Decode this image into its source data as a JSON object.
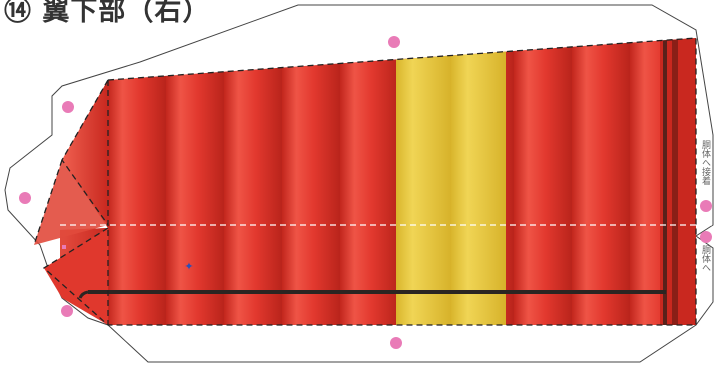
{
  "title": "⑭ 翼下部（右）",
  "side_labels": {
    "upper": "胴体へ接着",
    "lower": "胴体へ"
  },
  "colors": {
    "red": "#e2382e",
    "red_dark": "#b71f18",
    "yellow": "#e6c73a",
    "pink_dot": "#e97bb7",
    "outline": "#444444",
    "line_dark": "#2b2522"
  },
  "icons": [
    "glue-dot-icon",
    "star-marker-icon"
  ]
}
